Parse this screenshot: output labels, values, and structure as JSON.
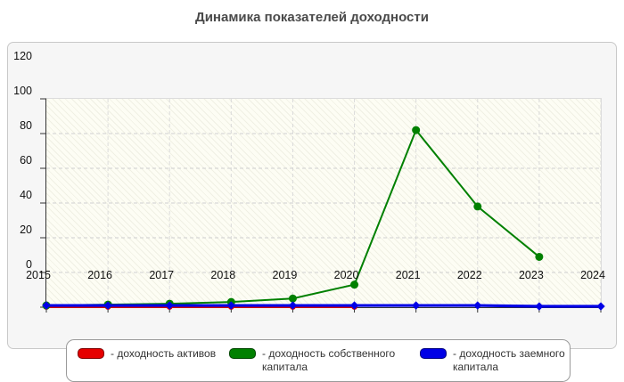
{
  "title": "Динамика показателей доходности",
  "chart_data": {
    "type": "line",
    "title": "Динамика показателей доходности",
    "x": [
      "2015",
      "2016",
      "2017",
      "2018",
      "2019",
      "2020",
      "2021",
      "2022",
      "2023",
      "2024"
    ],
    "ylim": [
      0,
      120
    ],
    "yticks": [
      0,
      20,
      40,
      60,
      80,
      100,
      120
    ],
    "grid": true,
    "legend_position": "bottom",
    "series": [
      {
        "name": "доходность активов",
        "color": "#e60000",
        "marker": "circle",
        "values": [
          0.3,
          0.3,
          0.3,
          0.3,
          0.3,
          0.3,
          null,
          null,
          null,
          null
        ]
      },
      {
        "name": "доходность собственного капитала",
        "color": "#008000",
        "marker": "circle",
        "values": [
          1,
          1.5,
          2,
          3,
          5,
          13,
          102,
          58,
          29,
          null
        ]
      },
      {
        "name": "доходность заемного капитала",
        "color": "#0000e6",
        "marker": "diamond",
        "values": [
          1,
          1,
          1,
          1,
          1,
          1,
          1,
          1,
          0.5,
          0.5
        ]
      }
    ]
  },
  "legend": {
    "items": [
      {
        "label": "- доходность активов",
        "color": "#e60000"
      },
      {
        "label": "- доходность собственного капитала",
        "color": "#008000"
      },
      {
        "label": "- доходность заемного капитала",
        "color": "#0000e6"
      }
    ]
  }
}
